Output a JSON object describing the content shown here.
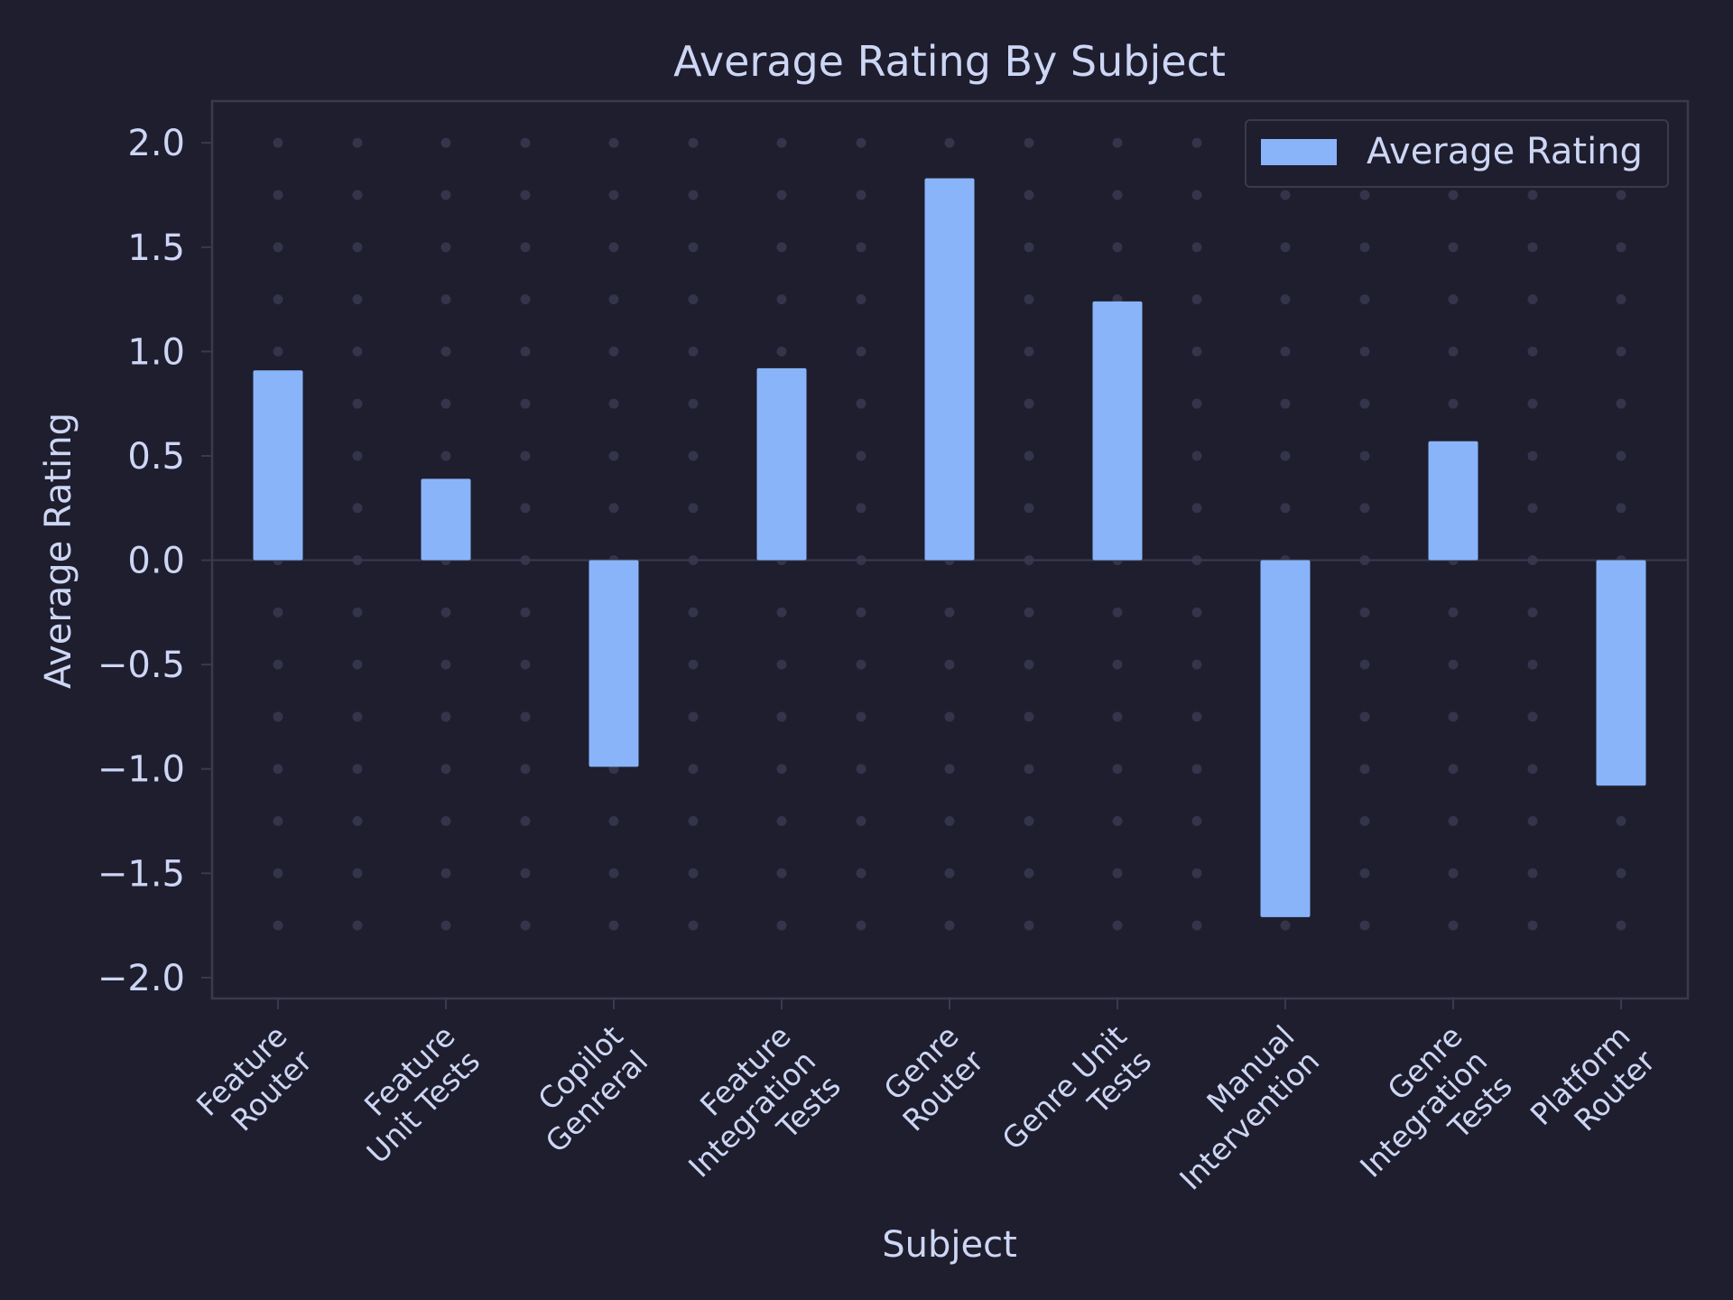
{
  "chart_data": {
    "type": "bar",
    "title": "Average Rating By Subject",
    "xlabel": "Subject",
    "ylabel": "Average Rating",
    "categories": [
      [
        "Feature",
        "Router"
      ],
      [
        "Feature",
        "Unit Tests"
      ],
      [
        "Copilot",
        "Genreral"
      ],
      [
        "Feature",
        "Integration",
        "Tests"
      ],
      [
        "Genre",
        "Router"
      ],
      [
        "Genre Unit",
        "Tests"
      ],
      [
        "Manual",
        "Intervention"
      ],
      [
        "Genre",
        "Integration",
        "Tests"
      ],
      [
        "Platform",
        "Router"
      ]
    ],
    "series": [
      {
        "name": "Average Rating",
        "values": [
          0.91,
          0.39,
          -0.99,
          0.92,
          1.83,
          1.24,
          -1.71,
          0.57,
          -1.08
        ]
      }
    ],
    "ylim": [
      -2.1,
      2.2
    ],
    "yticks": [
      -2.0,
      -1.5,
      -1.0,
      -0.5,
      0.0,
      0.5,
      1.0,
      1.5,
      2.0
    ],
    "ytick_labels": [
      "−2.0",
      "−1.5",
      "−1.0",
      "−0.5",
      "0.0",
      "0.5",
      "1.0",
      "1.5",
      "2.0"
    ],
    "grid": "dotted",
    "legend_position": "top-right",
    "colors": {
      "background": "#1e1e2e",
      "bar": "#89b4fa",
      "text": "#cdd6f4",
      "axes": "#3a3a4e",
      "grid_dot": "#34344a"
    }
  }
}
